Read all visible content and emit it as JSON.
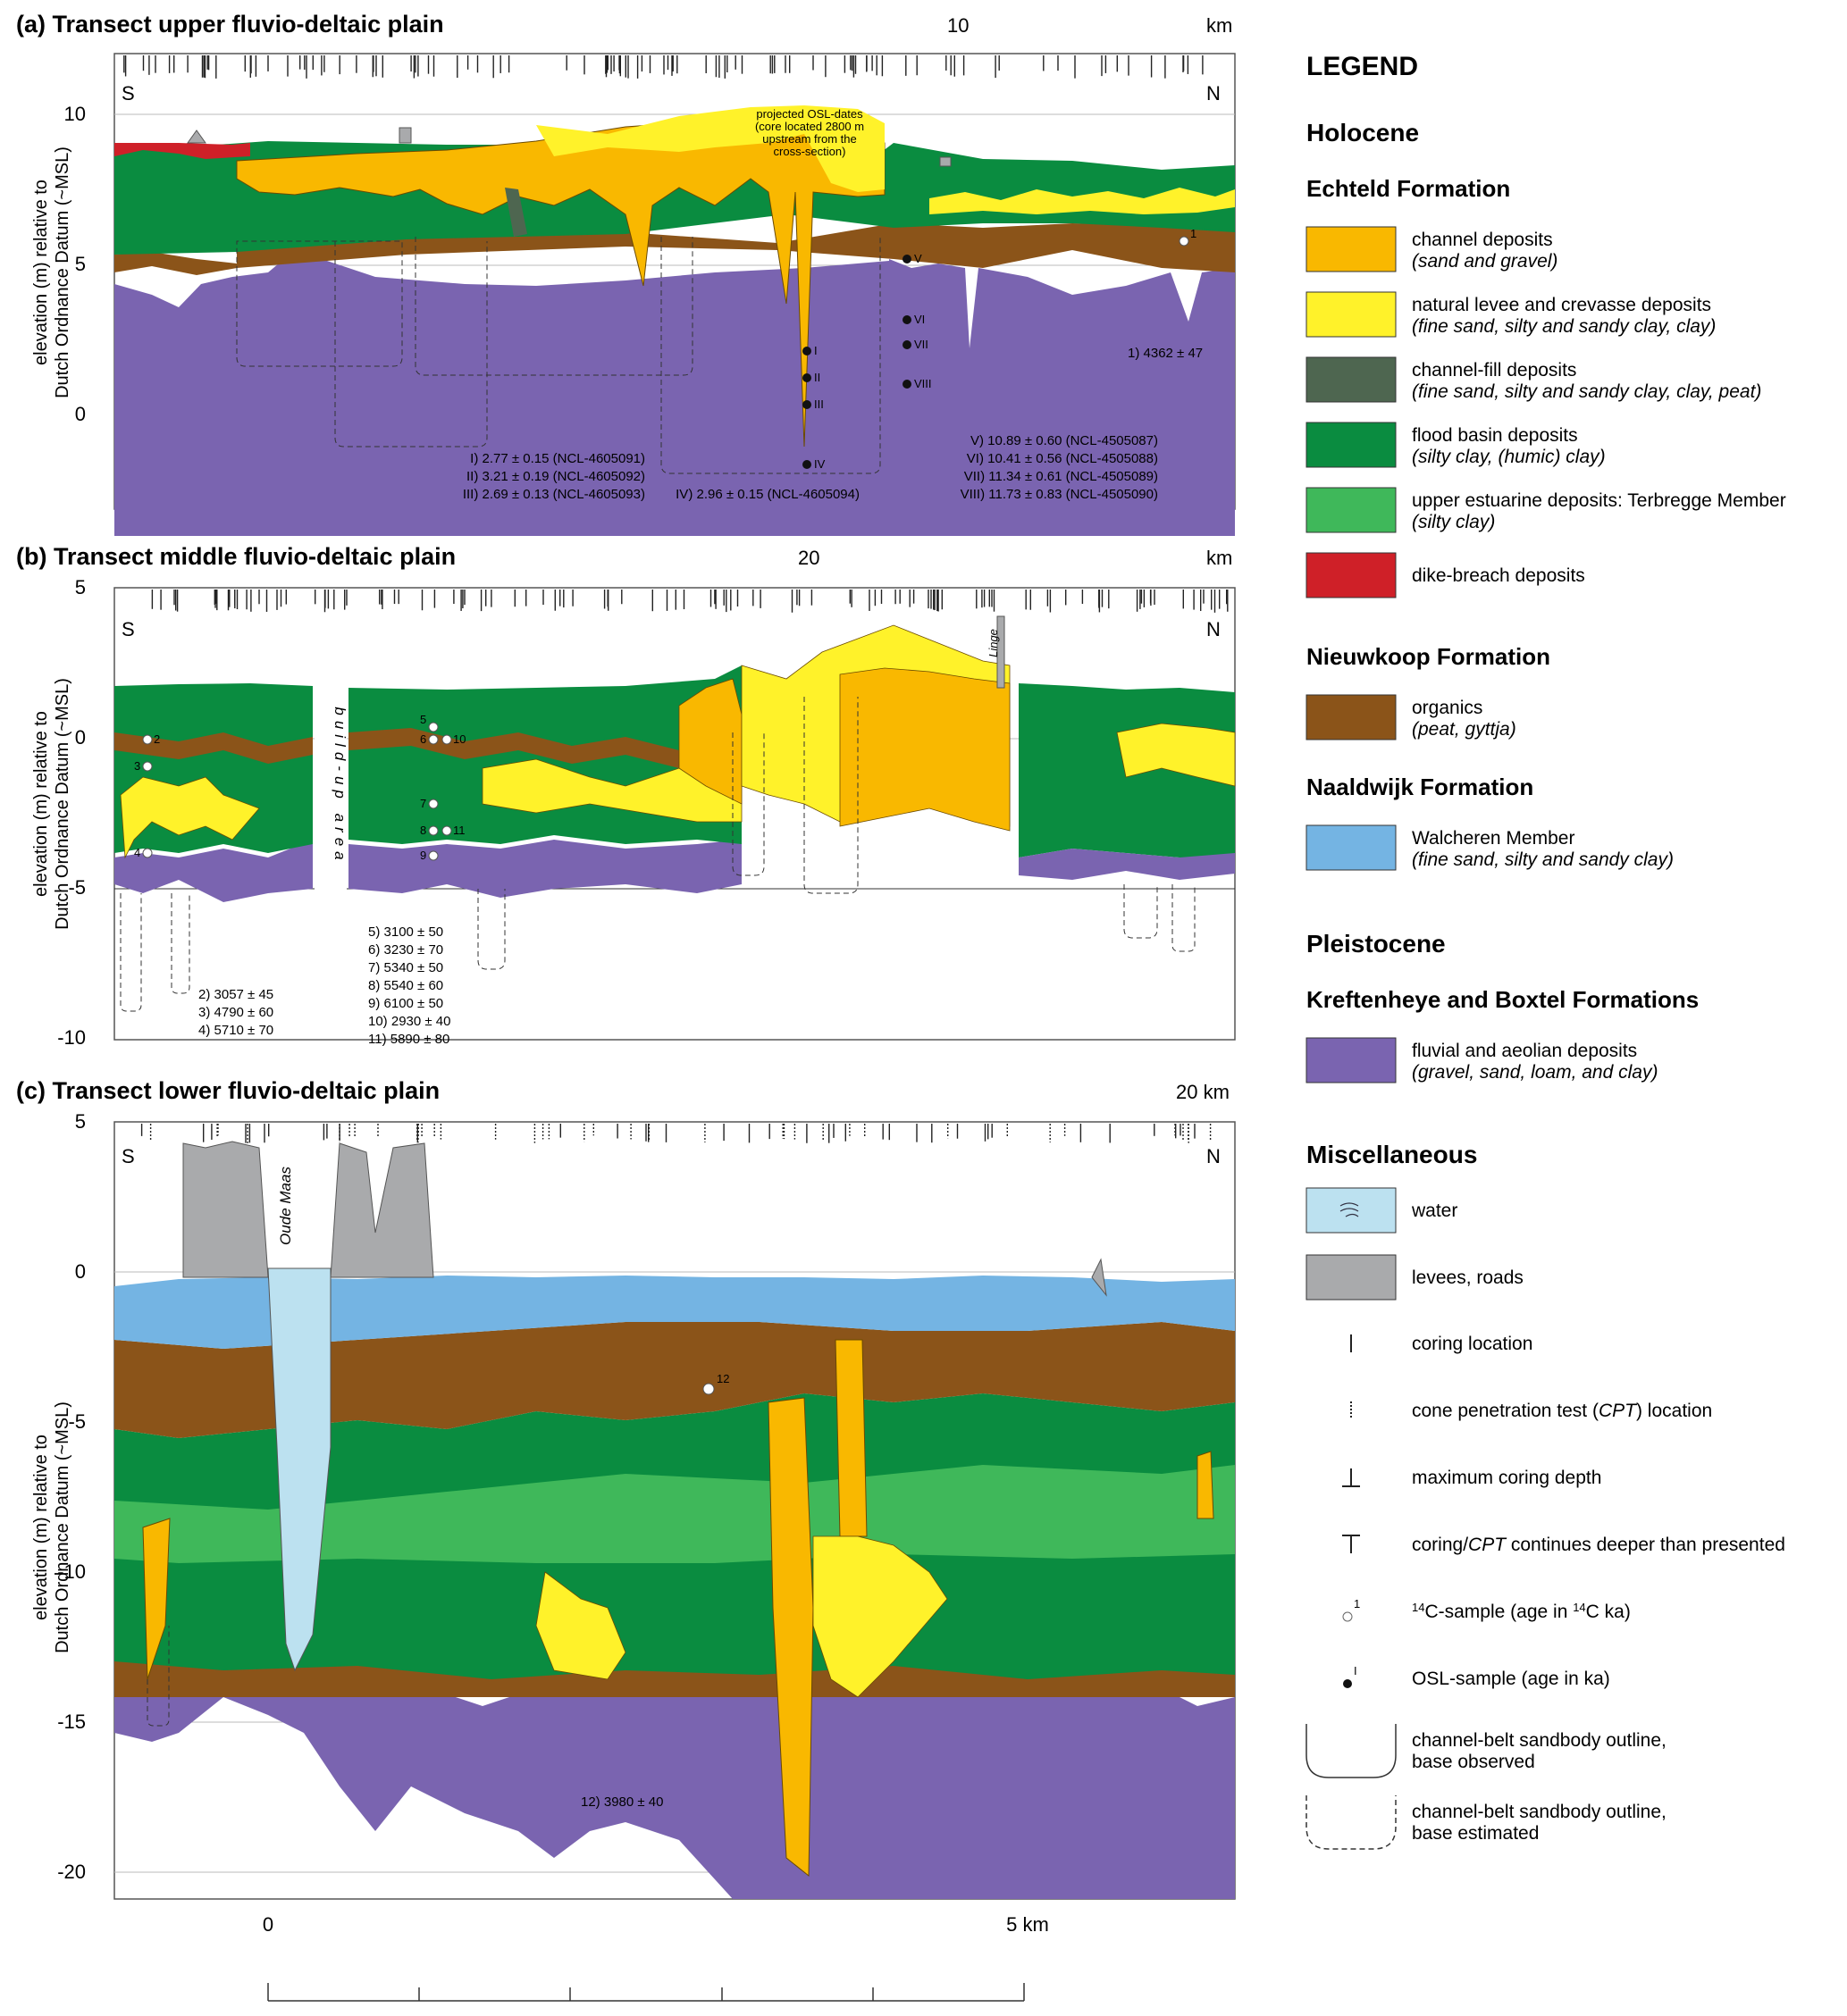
{
  "colors": {
    "channel": "#f9b800",
    "levee": "#fff22a",
    "channel_fill": "#4e6650",
    "flood_basin": "#0a8c40",
    "upper_estuarine": "#3fb85a",
    "dike_breach": "#cf2028",
    "organics": "#8b5419",
    "walcheren": "#74b4e3",
    "pleistocene": "#7a64b0",
    "water": "#bce1f0",
    "levees_roads": "#a9aaac"
  },
  "panel_a": {
    "title": "(a) Transect upper fluvio-deltaic plain",
    "km_tick": "10",
    "km_unit": "km",
    "ylabel_1": "elevation (m) relative to",
    "ylabel_2": "Dutch Ordnance Datum (~MSL)",
    "yticks": [
      "10",
      "5",
      "0"
    ],
    "south": "S",
    "north": "N",
    "projected_note_1": "projected OSL-dates",
    "projected_note_2": "(core located 2800 m",
    "projected_note_3": "upstream from the",
    "projected_note_4": "cross-section)",
    "osl_labels": [
      "I",
      "II",
      "III",
      "IV",
      "V",
      "VI",
      "VII",
      "VIII"
    ],
    "c14_label": "1",
    "dates_left": [
      "I) 2.77 ± 0.15 (NCL-4605091)",
      "II) 3.21 ± 0.19 (NCL-4605092)",
      "III) 2.69 ± 0.13 (NCL-4605093)"
    ],
    "date_iv": "IV) 2.96 ± 0.15 (NCL-4605094)",
    "dates_right": [
      "V) 10.89 ± 0.60 (NCL-4505087)",
      "VI) 10.41 ± 0.56 (NCL-4505088)",
      "VII) 11.34 ± 0.61 (NCL-4505089)",
      "VIII) 11.73 ± 0.83 (NCL-4505090)"
    ],
    "date_1": "1) 4362 ± 47"
  },
  "panel_b": {
    "title": "(b) Transect middle fluvio-deltaic plain",
    "km_tick": "20",
    "km_unit": "km",
    "ylabel_1": "elevation (m) relative to",
    "ylabel_2": "Dutch Ordnance Datum (~MSL)",
    "yticks": [
      "5",
      "0",
      "-5",
      "-10"
    ],
    "south": "S",
    "north": "N",
    "buildup": "build-up area",
    "linge": "Linge",
    "sample_labels": [
      "2",
      "3",
      "4",
      "5",
      "6",
      "7",
      "8",
      "9",
      "10",
      "11"
    ],
    "dates_left": [
      "2) 3057 ± 45",
      "3) 4790 ± 60",
      "4) 5710 ± 70"
    ],
    "dates_mid": [
      "5) 3100 ± 50",
      "6) 3230 ± 70",
      "7) 5340 ± 50",
      "8) 5540 ± 60",
      "9) 6100 ± 50",
      "10) 2930 ± 40",
      "11) 5890 ± 80"
    ]
  },
  "panel_c": {
    "title": "(c) Transect lower fluvio-deltaic plain",
    "km_top": "20 km",
    "ylabel_1": "elevation (m) relative to",
    "ylabel_2": "Dutch Ordnance Datum (~MSL)",
    "yticks": [
      "5",
      "0",
      "-5",
      "-10",
      "-15",
      "-20"
    ],
    "south": "S",
    "north": "N",
    "oude_maas": "Oude Maas",
    "sample_label": "12",
    "date_12": "12) 3980 ± 40",
    "scale_0": "0",
    "scale_5": "5 km"
  },
  "legend": {
    "title": "LEGEND",
    "holocene": "Holocene",
    "echteld": "Echteld Formation",
    "items_echteld": [
      {
        "label": "channel deposits",
        "sub": "(sand and gravel)"
      },
      {
        "label": "natural levee and crevasse deposits",
        "sub": "(fine sand, silty and sandy clay, clay)"
      },
      {
        "label": "channel-fill deposits",
        "sub": "(fine sand, silty and sandy clay, clay, peat)"
      },
      {
        "label": "flood basin deposits",
        "sub": "(silty clay, (humic) clay)"
      },
      {
        "label": "upper estuarine deposits: Terbregge Member",
        "sub": "(silty clay)"
      },
      {
        "label": "dike-breach deposits",
        "sub": ""
      }
    ],
    "nieuwkoop": "Nieuwkoop Formation",
    "organics": {
      "label": "organics",
      "sub": "(peat, gyttja)"
    },
    "naaldwijk": "Naaldwijk Formation",
    "walcheren": {
      "label": "Walcheren Member",
      "sub": "(fine sand, silty and sandy clay)"
    },
    "pleistocene": "Pleistocene",
    "kreftenheye": "Kreftenheye and Boxtel Formations",
    "fluvial": {
      "label": "fluvial and aeolian deposits",
      "sub": "(gravel, sand, loam, and clay)"
    },
    "misc": "Miscellaneous",
    "water": "water",
    "levees_roads": "levees, roads",
    "coring_location": "coring location",
    "cpt_location_pre": "cone penetration test (",
    "cpt_location_abbr": "CPT",
    "cpt_location_post": ") location",
    "max_depth": "maximum coring depth",
    "deeper_pre": "coring/",
    "deeper_abbr": "CPT",
    "deeper_post": " continues deeper than presented",
    "c14_sample_pre": "C-sample (age in ",
    "c14_sample_sup": "14",
    "c14_sample_post": "C ka)",
    "c14_mark": "1",
    "osl_sample": "OSL-sample (age in ka)",
    "osl_mark": "I",
    "outline_observed_1": "channel-belt sandbody outline,",
    "outline_observed_2": "base observed",
    "outline_estimated_1": "channel-belt sandbody outline,",
    "outline_estimated_2": "base estimated"
  }
}
